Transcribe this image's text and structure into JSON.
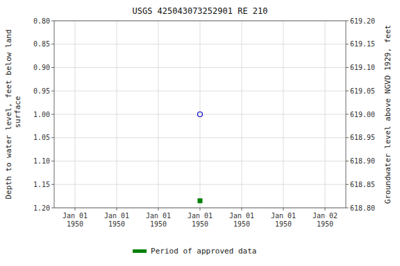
{
  "chart_data": {
    "type": "scatter",
    "title": "USGS 425043073252901 RE 210",
    "ylabel": "Depth to water level, feet below land\n surface",
    "y2label": "Groundwater level above NGVD 1929, feet",
    "categories": [
      "Jan 01\n1950",
      "Jan 01\n1950",
      "Jan 01\n1950",
      "Jan 01\n1950",
      "Jan 01\n1950",
      "Jan 01\n1950",
      "Jan 02\n1950"
    ],
    "ylim": [
      1.2,
      0.8
    ],
    "yticks": [
      {
        "value": 0.8,
        "label": "0.80"
      },
      {
        "value": 0.85,
        "label": "0.85"
      },
      {
        "value": 0.9,
        "label": "0.90"
      },
      {
        "value": 0.95,
        "label": "0.95"
      },
      {
        "value": 1.0,
        "label": "1.00"
      },
      {
        "value": 1.05,
        "label": "1.05"
      },
      {
        "value": 1.1,
        "label": "1.10"
      },
      {
        "value": 1.15,
        "label": "1.15"
      },
      {
        "value": 1.2,
        "label": "1.20"
      }
    ],
    "y2lim": [
      618.8,
      619.2
    ],
    "y2ticks": [
      {
        "value": 619.2,
        "label": "619.20"
      },
      {
        "value": 619.15,
        "label": "619.15"
      },
      {
        "value": 619.1,
        "label": "619.10"
      },
      {
        "value": 619.05,
        "label": "619.05"
      },
      {
        "value": 619.0,
        "label": "619.00"
      },
      {
        "value": 618.95,
        "label": "618.95"
      },
      {
        "value": 618.9,
        "label": "618.90"
      },
      {
        "value": 618.85,
        "label": "618.85"
      },
      {
        "value": 618.8,
        "label": "618.80"
      }
    ],
    "series": [
      {
        "color": "#0000cc",
        "marker": "open-circle",
        "values": [
          null,
          null,
          null,
          1.0,
          null,
          null,
          null
        ]
      },
      {
        "name": "Period of approved data",
        "color": "#008000",
        "marker": "square",
        "values": [
          null,
          null,
          null,
          1.185,
          null,
          null,
          null
        ]
      }
    ],
    "grid": true,
    "legend": "bottom"
  }
}
